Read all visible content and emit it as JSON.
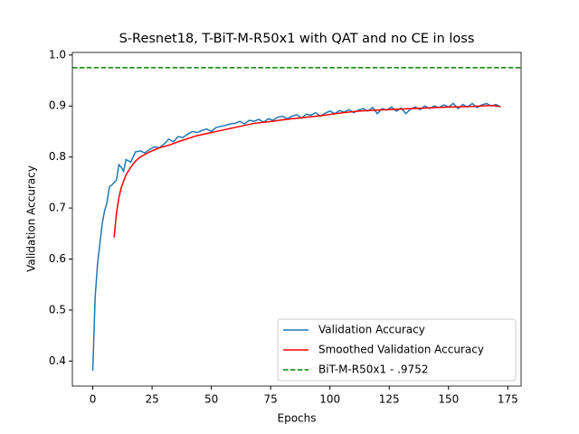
{
  "chart_data": {
    "type": "line",
    "title": "S-Resnet18, T-BiT-M-R50x1 with QAT and no CE in loss",
    "xlabel": "Epochs",
    "ylabel": "Validation Accuracy",
    "xlim": [
      -8.6,
      180.6
    ],
    "ylim": [
      0.351,
      1.005
    ],
    "xticks": [
      0,
      25,
      50,
      75,
      100,
      125,
      150,
      175
    ],
    "yticks": [
      0.4,
      0.5,
      0.6,
      0.7,
      0.8,
      0.9,
      {
        "value": 1,
        "label": "1.0"
      }
    ],
    "legend": "lower right",
    "series": [
      {
        "name": "Validation Accuracy",
        "color": "#1f77b4",
        "x": [
          0,
          1,
          2,
          3,
          4,
          5,
          6,
          7,
          8,
          9,
          10,
          11,
          12,
          13,
          14,
          16,
          18,
          20,
          22,
          24,
          26,
          28,
          30,
          32,
          34,
          36,
          38,
          40,
          42,
          44,
          46,
          48,
          50,
          52,
          54,
          56,
          58,
          60,
          62,
          64,
          66,
          68,
          70,
          72,
          74,
          76,
          78,
          80,
          82,
          84,
          86,
          88,
          90,
          92,
          94,
          96,
          98,
          100,
          102,
          104,
          106,
          108,
          110,
          112,
          114,
          116,
          118,
          120,
          122,
          124,
          126,
          128,
          130,
          132,
          134,
          136,
          138,
          140,
          142,
          144,
          146,
          148,
          150,
          152,
          154,
          156,
          158,
          160,
          162,
          164,
          166,
          168,
          170,
          172
        ],
        "values": [
          0.381,
          0.525,
          0.59,
          0.63,
          0.67,
          0.695,
          0.71,
          0.742,
          0.745,
          0.75,
          0.755,
          0.785,
          0.78,
          0.772,
          0.795,
          0.79,
          0.81,
          0.812,
          0.808,
          0.815,
          0.82,
          0.818,
          0.825,
          0.835,
          0.83,
          0.84,
          0.838,
          0.845,
          0.85,
          0.848,
          0.852,
          0.855,
          0.85,
          0.858,
          0.86,
          0.862,
          0.865,
          0.866,
          0.87,
          0.865,
          0.872,
          0.87,
          0.874,
          0.868,
          0.875,
          0.872,
          0.878,
          0.88,
          0.875,
          0.88,
          0.883,
          0.876,
          0.884,
          0.882,
          0.887,
          0.88,
          0.886,
          0.89,
          0.885,
          0.891,
          0.888,
          0.893,
          0.887,
          0.892,
          0.895,
          0.89,
          0.897,
          0.885,
          0.895,
          0.892,
          0.898,
          0.89,
          0.896,
          0.885,
          0.894,
          0.898,
          0.893,
          0.9,
          0.895,
          0.9,
          0.897,
          0.902,
          0.898,
          0.905,
          0.895,
          0.903,
          0.898,
          0.905,
          0.897,
          0.902,
          0.905,
          0.9,
          0.903,
          0.898
        ]
      },
      {
        "name": "Smoothed Validation Accuracy",
        "color": "#ff0000",
        "x": [
          9,
          10,
          11,
          12,
          14,
          16,
          18,
          20,
          24,
          28,
          32,
          36,
          40,
          44,
          48,
          52,
          56,
          60,
          64,
          68,
          72,
          76,
          80,
          88,
          96,
          104,
          112,
          120,
          130,
          140,
          150,
          160,
          168,
          172
        ],
        "values": [
          0.642,
          0.69,
          0.72,
          0.74,
          0.765,
          0.78,
          0.792,
          0.8,
          0.81,
          0.818,
          0.823,
          0.83,
          0.836,
          0.842,
          0.846,
          0.85,
          0.854,
          0.858,
          0.862,
          0.866,
          0.868,
          0.87,
          0.873,
          0.877,
          0.881,
          0.886,
          0.89,
          0.892,
          0.894,
          0.896,
          0.898,
          0.899,
          0.901,
          0.899
        ]
      }
    ],
    "hlines": [
      {
        "name": "BiT-M-R50x1 - .9752",
        "color": "#008000",
        "value": 0.9752
      }
    ]
  }
}
